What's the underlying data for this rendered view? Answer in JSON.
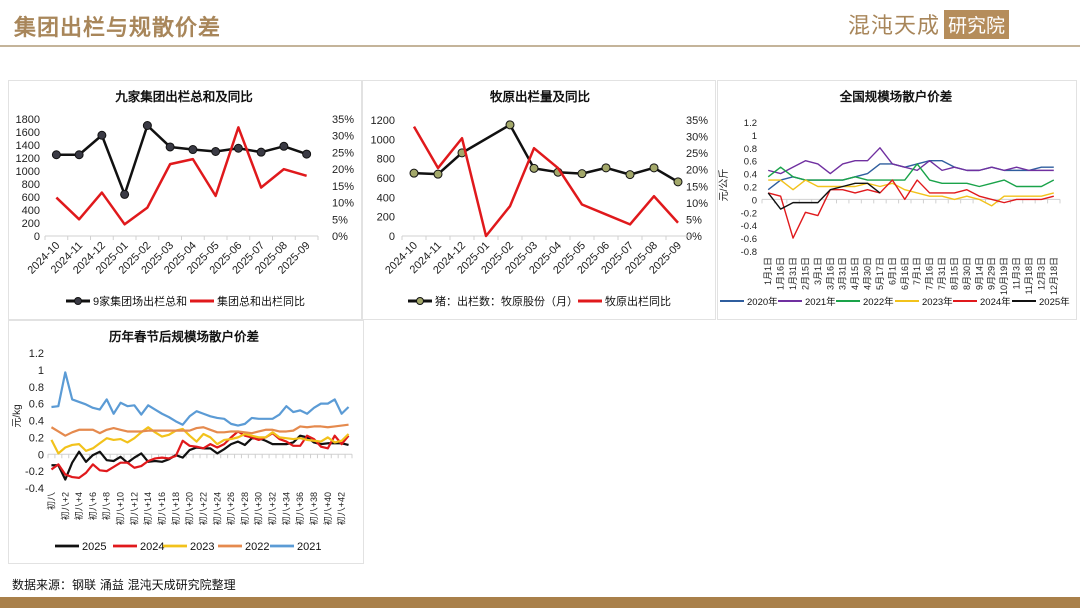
{
  "header": {
    "title": "集团出栏与规散价差",
    "logo_main": "混沌天成",
    "logo_box": "研究院"
  },
  "footer": {
    "source": "数据来源：钢联 涌益 混沌天成研究院整理"
  },
  "colors": {
    "accent": "#a8865a",
    "bar": "#a9804a"
  },
  "chart_data": [
    {
      "id": "c1",
      "type": "line",
      "title": "九家集团出栏总和及同比",
      "categories": [
        "2024-10",
        "2024-11",
        "2024-12",
        "2025-01",
        "2025-02",
        "2025-03",
        "2025-04",
        "2025-05",
        "2025-06",
        "2025-07",
        "2025-08",
        "2025-09"
      ],
      "ylim": [
        0,
        1800
      ],
      "yticks": [
        0,
        200,
        400,
        600,
        800,
        1000,
        1200,
        1400,
        1600,
        1800
      ],
      "y2lim": [
        0,
        35
      ],
      "y2ticks": [
        0,
        5,
        10,
        15,
        20,
        25,
        30,
        35
      ],
      "y2suffix": "%",
      "series": [
        {
          "name": "9家集团场出栏总和",
          "axis": "left",
          "color": "#111111",
          "marker": "#3a3a44",
          "values": [
            1250,
            1250,
            1550,
            640,
            1700,
            1370,
            1330,
            1300,
            1350,
            1290,
            1380,
            1260
          ]
        },
        {
          "name": "集团总和出栏同比",
          "axis": "right",
          "color": "#e0191c",
          "values": [
            11.5,
            5,
            13,
            3.5,
            8.5,
            21.5,
            23,
            12,
            32.5,
            14.5,
            20,
            18
          ]
        }
      ]
    },
    {
      "id": "c2",
      "type": "line",
      "title": "牧原出栏量及同比",
      "categories": [
        "2024-10",
        "2024-11",
        "2024-12",
        "2025-01",
        "2025-02",
        "2025-03",
        "2025-04",
        "2025-05",
        "2025-06",
        "2025-07",
        "2025-08",
        "2025-09"
      ],
      "ylim": [
        0,
        1200
      ],
      "yticks": [
        0,
        200,
        400,
        600,
        800,
        1000,
        1200
      ],
      "y2lim": [
        0,
        35
      ],
      "y2ticks": [
        0,
        5,
        10,
        15,
        20,
        25,
        30,
        35
      ],
      "y2suffix": "%",
      "series": [
        {
          "name": "猪：出栏数：牧原股份（月）",
          "axis": "left",
          "color": "#111111",
          "marker": "#a3a86a",
          "values": [
            650,
            640,
            860,
            null,
            1150,
            700,
            660,
            645,
            705,
            635,
            705,
            560
          ]
        },
        {
          "name": "牧原出栏同比",
          "axis": "right",
          "color": "#e0191c",
          "values": [
            33,
            20.5,
            29.5,
            0,
            9,
            26.5,
            20.5,
            9.5,
            6.5,
            3.5,
            12,
            4
          ]
        }
      ]
    },
    {
      "id": "c3",
      "type": "line",
      "title": "全国规模场散户价差",
      "ylabel": "元/公斤",
      "categories": [
        "1月1日",
        "1月16日",
        "1月31日",
        "2月15日",
        "3月1日",
        "3月16日",
        "3月31日",
        "4月15日",
        "4月30日",
        "5月17日",
        "6月1日",
        "6月16日",
        "7月1日",
        "7月16日",
        "7月31日",
        "8月15日",
        "8月30日",
        "9月14日",
        "9月29日",
        "10月19日",
        "11月3日",
        "11月18日",
        "12月3日",
        "12月18日"
      ],
      "ylim": [
        -0.8,
        1.2
      ],
      "yticks": [
        -0.8,
        -0.6,
        -0.4,
        -0.2,
        0,
        0.2,
        0.4,
        0.6,
        0.8,
        1,
        1.2
      ],
      "series": [
        {
          "name": "2020年",
          "color": "#2f5e9e",
          "values": [
            0.15,
            0.3,
            0.35,
            0.3,
            0.3,
            0.3,
            0.3,
            0.35,
            0.4,
            0.55,
            0.55,
            0.5,
            0.55,
            0.6,
            0.6,
            0.5,
            0.45,
            0.45,
            0.5,
            0.45,
            0.45,
            0.45,
            0.5,
            0.5
          ]
        },
        {
          "name": "2021年",
          "color": "#7030a0",
          "values": [
            0.45,
            0.4,
            0.5,
            0.6,
            0.55,
            0.4,
            0.55,
            0.6,
            0.6,
            0.8,
            0.55,
            0.5,
            0.45,
            0.6,
            0.45,
            0.5,
            0.45,
            0.45,
            0.5,
            0.45,
            0.5,
            0.45,
            0.45,
            0.45
          ]
        },
        {
          "name": "2022年",
          "color": "#1aa34a",
          "values": [
            0.35,
            0.5,
            0.35,
            0.3,
            0.3,
            0.3,
            0.3,
            0.35,
            0.3,
            0.3,
            0.3,
            0.3,
            0.55,
            0.3,
            0.25,
            0.25,
            0.25,
            0.2,
            0.25,
            0.3,
            0.2,
            0.2,
            0.2,
            0.3
          ]
        },
        {
          "name": "2023年",
          "color": "#f2c21b",
          "values": [
            0.3,
            0.3,
            0.15,
            0.3,
            0.2,
            0.2,
            0.2,
            0.2,
            0.25,
            0.2,
            0.25,
            0.15,
            0.1,
            0.05,
            0.05,
            0.0,
            0.05,
            0.0,
            -0.1,
            0.05,
            0.05,
            0.05,
            0.05,
            0.1
          ]
        },
        {
          "name": "2024年",
          "color": "#e0191c",
          "values": [
            0.1,
            0.05,
            -0.6,
            -0.2,
            -0.25,
            0.15,
            0.15,
            0.1,
            0.15,
            0.1,
            0.3,
            0.0,
            0.3,
            0.1,
            0.1,
            0.1,
            0.15,
            0.05,
            0.0,
            -0.05,
            0.0,
            0.0,
            0.0,
            0.05
          ]
        },
        {
          "name": "2025年",
          "color": "#111111",
          "values": [
            0.1,
            -0.15,
            -0.05,
            -0.05,
            -0.05,
            0.15,
            0.2,
            0.25,
            0.25,
            0.1,
            null,
            null,
            null,
            null,
            null,
            null,
            null,
            null,
            null,
            null,
            null,
            null,
            null,
            null
          ]
        }
      ]
    },
    {
      "id": "c4",
      "type": "line",
      "title": "历年春节后规模场散户价差",
      "ylabel": "元/kg",
      "categories": [
        "初八",
        "初八+1",
        "初八+2",
        "初八+3",
        "初八+4",
        "初八+5",
        "初八+6",
        "初八+7",
        "初八+8",
        "初八+9",
        "初八+10",
        "初八+11",
        "初八+12",
        "初八+13",
        "初八+14",
        "初八+15",
        "初八+16",
        "初八+17",
        "初八+18",
        "初八+19",
        "初八+20",
        "初八+21",
        "初八+22",
        "初八+23",
        "初八+24",
        "初八+25",
        "初八+26",
        "初八+27",
        "初八+28",
        "初八+29",
        "初八+30",
        "初八+31",
        "初八+32",
        "初八+33",
        "初八+34",
        "初八+35",
        "初八+36",
        "初八+37",
        "初八+38",
        "初八+39",
        "初八+40",
        "初八+41",
        "初八+42",
        "初八+43"
      ],
      "label_every": 2,
      "ylim": [
        -0.4,
        1.2
      ],
      "yticks": [
        -0.4,
        -0.2,
        0,
        0.2,
        0.4,
        0.6,
        0.8,
        1,
        1.2
      ],
      "series": [
        {
          "name": "2025",
          "color": "#111111",
          "values": [
            -0.13,
            -0.13,
            -0.3,
            -0.1,
            0.03,
            -0.09,
            -0.01,
            0.03,
            -0.07,
            -0.08,
            -0.03,
            -0.1,
            -0.04,
            0.01,
            -0.09,
            -0.08,
            -0.09,
            -0.06,
            -0.01,
            -0.04,
            0.05,
            0.08,
            0.07,
            0.07,
            0.01,
            0.06,
            0.12,
            0.15,
            0.11,
            0.19,
            0.19,
            0.16,
            0.12,
            0.12,
            0.12,
            0.14,
            0.22,
            0.2,
            0.14,
            0.12,
            0.13,
            0.13,
            0.13,
            0.11
          ]
        },
        {
          "name": "2024",
          "color": "#e0191c",
          "values": [
            -0.18,
            -0.12,
            -0.24,
            -0.27,
            -0.28,
            -0.22,
            -0.12,
            -0.19,
            -0.2,
            -0.15,
            -0.1,
            -0.1,
            -0.16,
            -0.14,
            -0.08,
            -0.05,
            -0.04,
            -0.05,
            -0.02,
            0.16,
            0.1,
            0.09,
            0.07,
            0.12,
            0.08,
            0.12,
            0.2,
            0.27,
            0.22,
            0.2,
            0.17,
            0.2,
            0.25,
            0.18,
            0.15,
            0.1,
            0.1,
            0.22,
            0.18,
            0.09,
            0.07,
            0.22,
            0.12,
            0.22
          ]
        },
        {
          "name": "2023",
          "color": "#f2c21b",
          "values": [
            0.17,
            0.01,
            0.08,
            0.11,
            0.12,
            0.04,
            0.07,
            0.13,
            0.19,
            0.17,
            0.18,
            0.14,
            0.19,
            0.26,
            0.32,
            0.26,
            0.21,
            0.23,
            0.28,
            0.3,
            0.22,
            0.15,
            0.24,
            0.2,
            0.12,
            0.17,
            0.18,
            0.2,
            0.24,
            0.22,
            0.2,
            0.2,
            0.26,
            0.2,
            0.19,
            0.18,
            0.19,
            0.17,
            0.16,
            0.15,
            0.2,
            0.14,
            0.16,
            0.24
          ]
        },
        {
          "name": "2022",
          "color": "#e58a4e",
          "values": [
            0.32,
            0.27,
            0.22,
            0.26,
            0.29,
            0.29,
            0.29,
            0.25,
            0.29,
            0.31,
            0.29,
            0.27,
            0.27,
            0.27,
            0.28,
            0.28,
            0.28,
            0.28,
            0.28,
            0.28,
            0.28,
            0.31,
            0.32,
            0.29,
            0.26,
            0.26,
            0.27,
            0.27,
            0.26,
            0.25,
            0.27,
            0.29,
            0.29,
            0.27,
            0.27,
            0.28,
            0.33,
            0.32,
            0.33,
            0.33,
            0.32,
            0.33,
            0.34,
            0.35
          ]
        },
        {
          "name": "2021",
          "color": "#5b9bd5",
          "values": [
            0.56,
            0.57,
            0.97,
            0.65,
            0.62,
            0.59,
            0.55,
            0.53,
            0.65,
            0.48,
            0.61,
            0.57,
            0.58,
            0.47,
            0.58,
            0.53,
            0.48,
            0.44,
            0.39,
            0.35,
            0.45,
            0.51,
            0.48,
            0.45,
            0.43,
            0.42,
            0.36,
            0.34,
            0.36,
            0.43,
            0.42,
            0.42,
            0.42,
            0.47,
            0.57,
            0.5,
            0.52,
            0.48,
            0.55,
            0.6,
            0.6,
            0.65,
            0.48,
            0.56
          ]
        }
      ]
    }
  ]
}
